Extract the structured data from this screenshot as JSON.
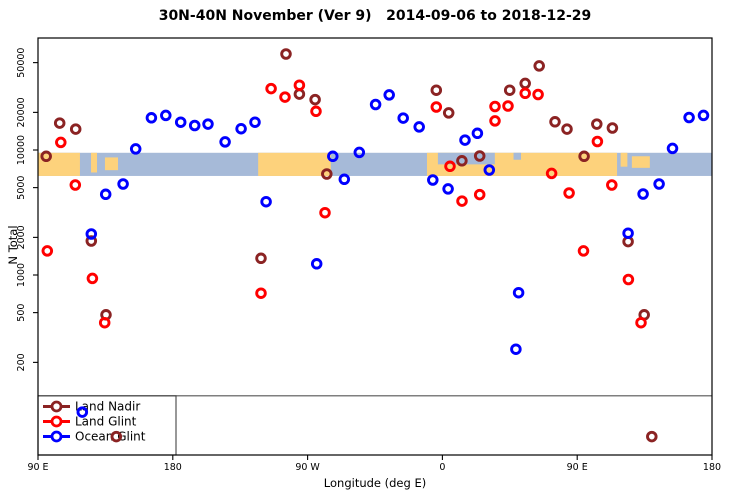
{
  "window_title": "30N-40N November (Ver 9)   2014-09-06 to 2018-12-29",
  "chart_data": {
    "type": "scatter",
    "title": "30N-40N November (Ver 9)   2014-09-06 to 2018-12-29",
    "xlabel": "Longitude (deg E)",
    "ylabel": "N Total",
    "grid": false,
    "x_axis": {
      "min": 90,
      "max": 540,
      "wraps_longitude": true,
      "ticks": [
        {
          "v": 90,
          "label": "90 E"
        },
        {
          "v": 180,
          "label": "180"
        },
        {
          "v": 270,
          "label": "90 W"
        },
        {
          "v": 360,
          "label": "0"
        },
        {
          "v": 450,
          "label": "90 E"
        },
        {
          "v": 540,
          "label": "180"
        }
      ]
    },
    "y_axis": {
      "scale": "log10",
      "min": 36,
      "max": 79000,
      "ticks": [
        {
          "n": 200,
          "label": "200"
        },
        {
          "n": 500,
          "label": "500"
        },
        {
          "n": 1000,
          "label": "1000"
        },
        {
          "n": 2000,
          "label": "2000"
        },
        {
          "n": 5000,
          "label": "5000"
        },
        {
          "n": 10000,
          "label": "10000"
        },
        {
          "n": 20000,
          "label": "20000"
        },
        {
          "n": 50000,
          "label": "50000"
        }
      ]
    },
    "threshold_line": {
      "n": 108,
      "color": "#555555"
    },
    "map_band": {
      "n_top": 9500,
      "n_bottom": 6200,
      "ocean_color": "#A6BAD8",
      "land_color": "#FDD27C",
      "land_segments": [
        {
          "from": 90,
          "to": 118,
          "top": 0,
          "bottom": 1
        },
        {
          "from": 125.4,
          "to": 129.4,
          "top": 0,
          "bottom": 0.85
        },
        {
          "from": 134.7,
          "to": 143.4,
          "top": 0.2,
          "bottom": 0.75
        },
        {
          "from": 237,
          "to": 285.5,
          "top": 0,
          "bottom": 1
        },
        {
          "from": 349.7,
          "to": 476.6,
          "top": 0,
          "bottom": 1
        },
        {
          "from": 479,
          "to": 483.5,
          "top": 0,
          "bottom": 0.6
        },
        {
          "from": 486.5,
          "to": 498.5,
          "top": 0.15,
          "bottom": 0.65
        }
      ],
      "ocean_patches": [
        {
          "from": 357,
          "to": 395,
          "top": 0,
          "bottom": 0.5
        },
        {
          "from": 407.5,
          "to": 412.5,
          "top": 0,
          "bottom": 0.3
        }
      ]
    },
    "legend": {
      "position": "bottom-left",
      "entries": [
        {
          "label": "Land Nadir",
          "color": "#8B2323"
        },
        {
          "label": "Land Glint",
          "color": "#FF0000"
        },
        {
          "label": "Ocean Glint",
          "color": "#0000FF"
        }
      ]
    },
    "series": [
      {
        "name": "Land Nadir",
        "color": "#8B2323",
        "points": [
          [
            95.5,
            8900
          ],
          [
            104.5,
            16400
          ],
          [
            115.2,
            14700
          ],
          [
            125.6,
            1870
          ],
          [
            135.4,
            480
          ],
          [
            142.3,
            51
          ],
          [
            238.9,
            1360
          ],
          [
            255.6,
            58600
          ],
          [
            264.5,
            28000
          ],
          [
            275.0,
            25300
          ],
          [
            282.8,
            6430
          ],
          [
            355.9,
            30100
          ],
          [
            364.2,
            19800
          ],
          [
            373.0,
            8200
          ],
          [
            384.9,
            8950
          ],
          [
            404.9,
            30100
          ],
          [
            415.3,
            34100
          ],
          [
            424.6,
            47100
          ],
          [
            435.2,
            16800
          ],
          [
            443.2,
            14700
          ],
          [
            454.6,
            8900
          ],
          [
            463.1,
            16100
          ],
          [
            473.5,
            15000
          ],
          [
            484.0,
            1850
          ],
          [
            494.7,
            480
          ],
          [
            499.8,
            51
          ]
        ]
      },
      {
        "name": "Land Glint",
        "color": "#FF0000",
        "points": [
          [
            96.2,
            1560
          ],
          [
            105.2,
            11500
          ],
          [
            114.9,
            5250
          ],
          [
            126.3,
            940
          ],
          [
            134.5,
            415
          ],
          [
            238.9,
            715
          ],
          [
            245.6,
            31000
          ],
          [
            254.9,
            26500
          ],
          [
            264.5,
            33000
          ],
          [
            275.6,
            20400
          ],
          [
            281.6,
            3150
          ],
          [
            355.9,
            22100
          ],
          [
            365.1,
            7400
          ],
          [
            373.1,
            3900
          ],
          [
            384.9,
            4400
          ],
          [
            395.1,
            22300
          ],
          [
            395.1,
            17100
          ],
          [
            403.8,
            22500
          ],
          [
            415.3,
            28400
          ],
          [
            423.9,
            27800
          ],
          [
            432.9,
            6500
          ],
          [
            444.6,
            4530
          ],
          [
            454.2,
            1560
          ],
          [
            463.5,
            11700
          ],
          [
            473.1,
            5250
          ],
          [
            484.2,
            920
          ],
          [
            492.6,
            415
          ]
        ]
      },
      {
        "name": "Ocean Glint",
        "color": "#0000FF",
        "points": [
          [
            119.6,
            80
          ],
          [
            125.6,
            2130
          ],
          [
            135.2,
            4420
          ],
          [
            146.8,
            5350
          ],
          [
            155.2,
            10200
          ],
          [
            165.7,
            18100
          ],
          [
            175.3,
            18900
          ],
          [
            185.3,
            16700
          ],
          [
            194.6,
            15700
          ],
          [
            203.5,
            16100
          ],
          [
            214.9,
            11600
          ],
          [
            225.6,
            14800
          ],
          [
            234.9,
            16700
          ],
          [
            242.3,
            3860
          ],
          [
            276.1,
            1230
          ],
          [
            286.8,
            8900
          ],
          [
            294.5,
            5830
          ],
          [
            304.5,
            9570
          ],
          [
            315.4,
            23100
          ],
          [
            324.5,
            27600
          ],
          [
            333.8,
            18000
          ],
          [
            344.5,
            15300
          ],
          [
            353.6,
            5750
          ],
          [
            363.8,
            4880
          ],
          [
            375.1,
            12000
          ],
          [
            383.4,
            13600
          ],
          [
            391.3,
            6920
          ],
          [
            409.1,
            255
          ],
          [
            410.9,
            722
          ],
          [
            484.0,
            2160
          ],
          [
            494.0,
            4450
          ],
          [
            504.7,
            5350
          ],
          [
            513.6,
            10300
          ],
          [
            524.7,
            18200
          ],
          [
            534.3,
            18900
          ]
        ]
      }
    ]
  }
}
